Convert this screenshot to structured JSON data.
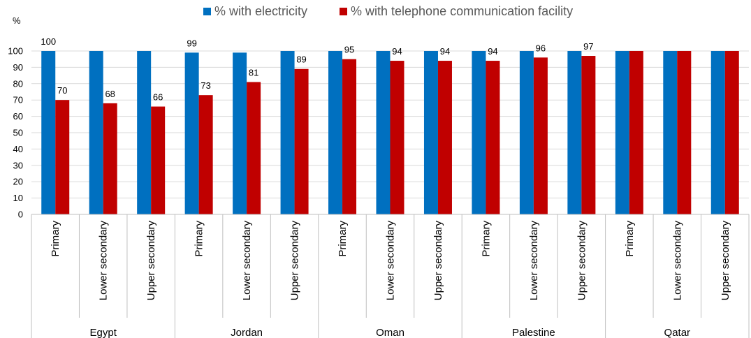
{
  "chart_data": {
    "type": "bar",
    "y_unit_label": "%",
    "ylim": [
      0,
      100
    ],
    "y_ticks": [
      0,
      10,
      20,
      30,
      40,
      50,
      60,
      70,
      80,
      90,
      100
    ],
    "grid": true,
    "legend_position": "top",
    "groups": [
      {
        "name": "Egypt",
        "categories": [
          "Primary",
          "Lower secondary",
          "Upper secondary"
        ]
      },
      {
        "name": "Jordan",
        "categories": [
          "Primary",
          "Lower secondary",
          "Upper secondary"
        ]
      },
      {
        "name": "Oman",
        "categories": [
          "Primary",
          "Lower secondary",
          "Upper secondary"
        ]
      },
      {
        "name": "Palestine",
        "categories": [
          "Primary",
          "Lower secondary",
          "Upper secondary"
        ]
      },
      {
        "name": "Qatar",
        "categories": [
          "Primary",
          "Lower secondary",
          "Upper secondary"
        ]
      }
    ],
    "series": [
      {
        "name": "% with electricity",
        "color": "#0070C0",
        "values": [
          100,
          100,
          100,
          99,
          99,
          100,
          100,
          100,
          100,
          100,
          100,
          100,
          100,
          100,
          100
        ],
        "labels": [
          "100",
          "",
          "",
          "99",
          "",
          "",
          "",
          "",
          "",
          "",
          "",
          "",
          "",
          "",
          ""
        ]
      },
      {
        "name": "% with telephone communication facility",
        "color": "#C00000",
        "values": [
          70,
          68,
          66,
          73,
          81,
          89,
          95,
          94,
          94,
          94,
          96,
          97,
          100,
          100,
          100
        ],
        "labels": [
          "70",
          "68",
          "66",
          "73",
          "81",
          "89",
          "95",
          "94",
          "94",
          "94",
          "96",
          "97",
          "",
          "",
          ""
        ]
      }
    ]
  }
}
